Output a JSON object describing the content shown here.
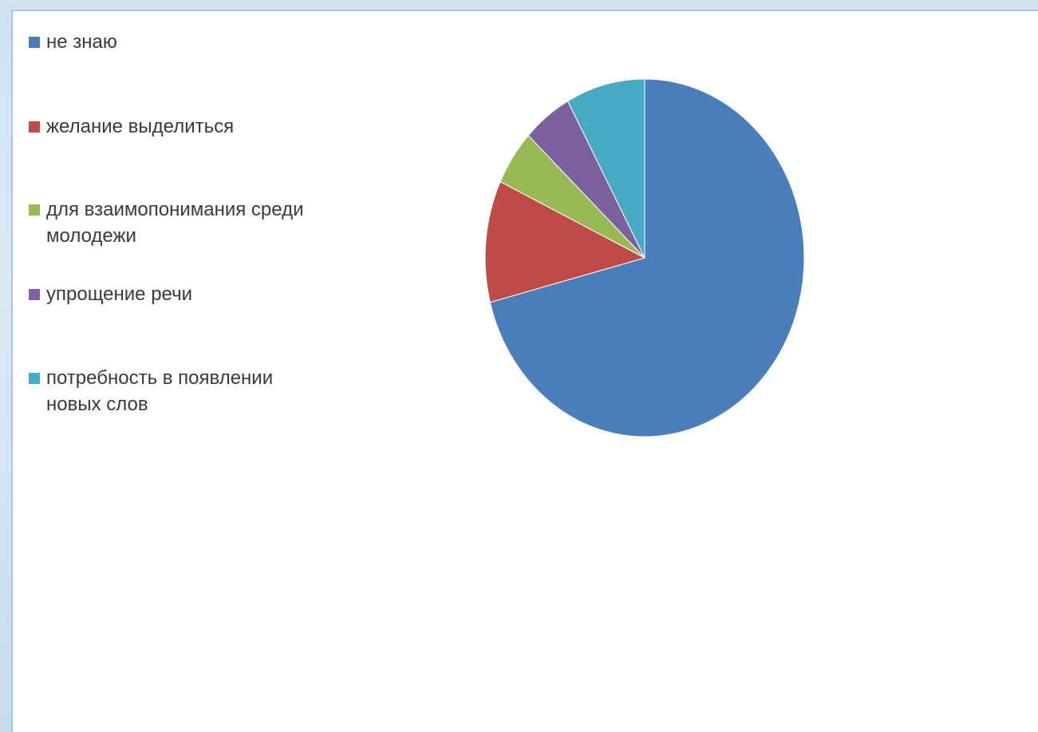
{
  "chart_data": {
    "type": "pie",
    "slices": [
      {
        "label": "не знаю",
        "value": 71,
        "color": "#4a7ebb"
      },
      {
        "label": "желание выделиться",
        "value": 11,
        "color": "#be4b48"
      },
      {
        "label": "для взаимопонимания среди молодежи",
        "value": 5,
        "color": "#98b954"
      },
      {
        "label": "упрощение речи",
        "value": 5,
        "color": "#7d60a0"
      },
      {
        "label": "потребность в появлении новых слов",
        "value": 8,
        "color": "#46aac5"
      }
    ],
    "legend_position": "left",
    "start_angle_deg": 0,
    "direction": "clockwise"
  },
  "legend": {
    "items": [
      {
        "line1": "не знаю",
        "line2": ""
      },
      {
        "line1": "желание выделиться",
        "line2": ""
      },
      {
        "line1": "для взаимопонимания среди",
        "line2": "молодежи"
      },
      {
        "line1": "упрощение речи",
        "line2": ""
      },
      {
        "line1": "потребность в появлении",
        "line2": "новых слов"
      }
    ]
  }
}
